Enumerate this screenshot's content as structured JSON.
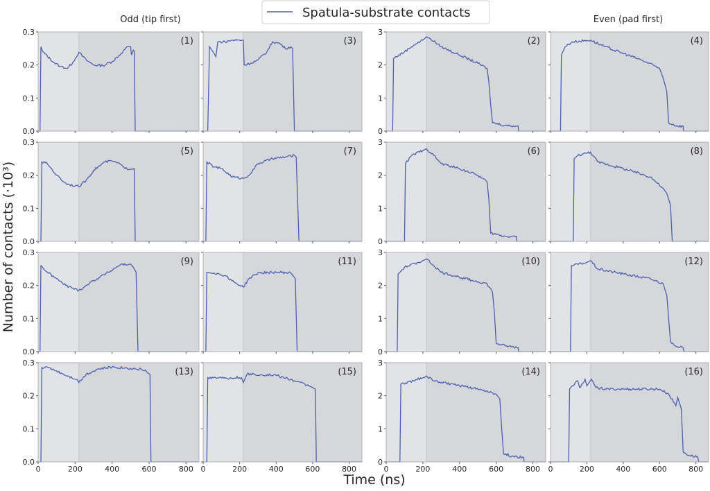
{
  "chart_data": {
    "type": "line",
    "legend": {
      "label": "Spatula-substrate contacts",
      "placement": "top-center"
    },
    "xlabel": "Time (ns)",
    "ylabel": "Number of contacts (·10³)",
    "column_titles": [
      "Odd (tip first)",
      "Even (pad first)"
    ],
    "xlim": [
      0,
      870
    ],
    "xticks": [
      0,
      200,
      400,
      600,
      800
    ],
    "shade_boundary_ns": 220,
    "line_color": "#4a5fb0",
    "shade_light": "#e2e3e6",
    "shade_dark": "#d6d7da",
    "odd_ylim": [
      0,
      0.3
    ],
    "odd_yticks": [
      "0.0",
      "0.1",
      "0.2",
      "0.3"
    ],
    "even_ylim": [
      0,
      3
    ],
    "even_yticks": [
      "0",
      "1",
      "2",
      "3"
    ],
    "panels": [
      {
        "label": "(1)",
        "row": 0,
        "col": 0,
        "points": [
          [
            0,
            0
          ],
          [
            10,
            0
          ],
          [
            15,
            0.255
          ],
          [
            25,
            0.24
          ],
          [
            80,
            0.21
          ],
          [
            120,
            0.195
          ],
          [
            160,
            0.19
          ],
          [
            190,
            0.21
          ],
          [
            220,
            0.238
          ],
          [
            260,
            0.215
          ],
          [
            300,
            0.2
          ],
          [
            350,
            0.198
          ],
          [
            400,
            0.21
          ],
          [
            450,
            0.235
          ],
          [
            480,
            0.255
          ],
          [
            500,
            0.255
          ],
          [
            505,
            0.23
          ],
          [
            515,
            0.245
          ],
          [
            520,
            0.24
          ],
          [
            525,
            0
          ],
          [
            870,
            0
          ]
        ]
      },
      {
        "label": "(3)",
        "row": 0,
        "col": 1,
        "points": [
          [
            0,
            0
          ],
          [
            25,
            0
          ],
          [
            35,
            0.255
          ],
          [
            60,
            0.235
          ],
          [
            70,
            0.225
          ],
          [
            80,
            0.27
          ],
          [
            120,
            0.27
          ],
          [
            160,
            0.275
          ],
          [
            220,
            0.275
          ],
          [
            225,
            0.2
          ],
          [
            260,
            0.205
          ],
          [
            300,
            0.215
          ],
          [
            350,
            0.24
          ],
          [
            380,
            0.27
          ],
          [
            420,
            0.265
          ],
          [
            450,
            0.25
          ],
          [
            480,
            0.255
          ],
          [
            490,
            0.25
          ],
          [
            500,
            0
          ],
          [
            870,
            0
          ]
        ]
      },
      {
        "label": "(2)",
        "row": 0,
        "col": 2,
        "points": [
          [
            0,
            0
          ],
          [
            35,
            0
          ],
          [
            40,
            2.2
          ],
          [
            100,
            2.4
          ],
          [
            150,
            2.6
          ],
          [
            200,
            2.75
          ],
          [
            220,
            2.85
          ],
          [
            240,
            2.8
          ],
          [
            300,
            2.55
          ],
          [
            400,
            2.3
          ],
          [
            500,
            2.05
          ],
          [
            550,
            1.9
          ],
          [
            560,
            1.5
          ],
          [
            570,
            0.8
          ],
          [
            580,
            0.25
          ],
          [
            650,
            0.17
          ],
          [
            720,
            0.15
          ],
          [
            722,
            0
          ],
          [
            870,
            0
          ]
        ]
      },
      {
        "label": "(4)",
        "row": 0,
        "col": 3,
        "points": [
          [
            0,
            0
          ],
          [
            55,
            0
          ],
          [
            60,
            2.3
          ],
          [
            80,
            2.55
          ],
          [
            120,
            2.7
          ],
          [
            220,
            2.75
          ],
          [
            300,
            2.55
          ],
          [
            400,
            2.35
          ],
          [
            500,
            2.15
          ],
          [
            600,
            1.9
          ],
          [
            620,
            1.6
          ],
          [
            640,
            1.2
          ],
          [
            650,
            0.25
          ],
          [
            700,
            0.15
          ],
          [
            730,
            0.15
          ],
          [
            732,
            0
          ],
          [
            870,
            0
          ]
        ]
      },
      {
        "label": "(5)",
        "row": 1,
        "col": 0,
        "points": [
          [
            0,
            0
          ],
          [
            15,
            0
          ],
          [
            20,
            0.24
          ],
          [
            50,
            0.235
          ],
          [
            100,
            0.2
          ],
          [
            150,
            0.175
          ],
          [
            220,
            0.165
          ],
          [
            260,
            0.185
          ],
          [
            300,
            0.215
          ],
          [
            360,
            0.24
          ],
          [
            400,
            0.243
          ],
          [
            450,
            0.232
          ],
          [
            470,
            0.22
          ],
          [
            520,
            0.22
          ],
          [
            525,
            0
          ],
          [
            870,
            0
          ]
        ]
      },
      {
        "label": "(7)",
        "row": 1,
        "col": 1,
        "points": [
          [
            0,
            0
          ],
          [
            15,
            0
          ],
          [
            20,
            0.24
          ],
          [
            60,
            0.225
          ],
          [
            100,
            0.22
          ],
          [
            160,
            0.195
          ],
          [
            220,
            0.19
          ],
          [
            260,
            0.205
          ],
          [
            300,
            0.235
          ],
          [
            380,
            0.25
          ],
          [
            450,
            0.255
          ],
          [
            500,
            0.26
          ],
          [
            510,
            0.255
          ],
          [
            525,
            0
          ],
          [
            870,
            0
          ]
        ]
      },
      {
        "label": "(6)",
        "row": 1,
        "col": 2,
        "points": [
          [
            0,
            0
          ],
          [
            100,
            0
          ],
          [
            105,
            2.35
          ],
          [
            140,
            2.6
          ],
          [
            200,
            2.75
          ],
          [
            220,
            2.8
          ],
          [
            260,
            2.6
          ],
          [
            300,
            2.35
          ],
          [
            400,
            2.2
          ],
          [
            500,
            2.0
          ],
          [
            550,
            1.8
          ],
          [
            560,
            1.3
          ],
          [
            570,
            0.25
          ],
          [
            650,
            0.15
          ],
          [
            710,
            0.15
          ],
          [
            712,
            0
          ],
          [
            870,
            0
          ]
        ]
      },
      {
        "label": "(8)",
        "row": 1,
        "col": 3,
        "points": [
          [
            0,
            0
          ],
          [
            125,
            0
          ],
          [
            130,
            2.5
          ],
          [
            150,
            2.6
          ],
          [
            220,
            2.7
          ],
          [
            260,
            2.4
          ],
          [
            400,
            2.2
          ],
          [
            550,
            1.95
          ],
          [
            620,
            1.6
          ],
          [
            640,
            1.45
          ],
          [
            660,
            1.1
          ],
          [
            670,
            0
          ],
          [
            870,
            0
          ]
        ]
      },
      {
        "label": "(9)",
        "row": 2,
        "col": 0,
        "points": [
          [
            0,
            0
          ],
          [
            10,
            0
          ],
          [
            15,
            0.26
          ],
          [
            50,
            0.24
          ],
          [
            100,
            0.22
          ],
          [
            150,
            0.2
          ],
          [
            220,
            0.185
          ],
          [
            260,
            0.2
          ],
          [
            300,
            0.215
          ],
          [
            380,
            0.24
          ],
          [
            450,
            0.265
          ],
          [
            480,
            0.262
          ],
          [
            500,
            0.265
          ],
          [
            515,
            0.255
          ],
          [
            530,
            0.24
          ],
          [
            540,
            0
          ],
          [
            870,
            0
          ]
        ]
      },
      {
        "label": "(11)",
        "row": 2,
        "col": 1,
        "points": [
          [
            0,
            0
          ],
          [
            15,
            0
          ],
          [
            20,
            0.24
          ],
          [
            60,
            0.238
          ],
          [
            120,
            0.23
          ],
          [
            170,
            0.21
          ],
          [
            220,
            0.195
          ],
          [
            250,
            0.22
          ],
          [
            300,
            0.238
          ],
          [
            400,
            0.24
          ],
          [
            480,
            0.238
          ],
          [
            500,
            0.225
          ],
          [
            505,
            0.22
          ],
          [
            515,
            0
          ],
          [
            870,
            0
          ]
        ]
      },
      {
        "label": "(10)",
        "row": 2,
        "col": 2,
        "points": [
          [
            0,
            0
          ],
          [
            60,
            0
          ],
          [
            65,
            2.35
          ],
          [
            100,
            2.55
          ],
          [
            200,
            2.75
          ],
          [
            220,
            2.8
          ],
          [
            260,
            2.6
          ],
          [
            300,
            2.4
          ],
          [
            400,
            2.25
          ],
          [
            550,
            2.05
          ],
          [
            580,
            1.8
          ],
          [
            590,
            1.2
          ],
          [
            600,
            0.25
          ],
          [
            650,
            0.17
          ],
          [
            720,
            0.12
          ],
          [
            722,
            0
          ],
          [
            870,
            0
          ]
        ]
      },
      {
        "label": "(12)",
        "row": 2,
        "col": 3,
        "points": [
          [
            0,
            0
          ],
          [
            110,
            0
          ],
          [
            115,
            2.6
          ],
          [
            200,
            2.7
          ],
          [
            220,
            2.75
          ],
          [
            260,
            2.5
          ],
          [
            400,
            2.35
          ],
          [
            550,
            2.2
          ],
          [
            620,
            2.05
          ],
          [
            640,
            1.7
          ],
          [
            660,
            0.3
          ],
          [
            700,
            0.15
          ],
          [
            730,
            0.12
          ],
          [
            735,
            0
          ],
          [
            870,
            0
          ]
        ]
      },
      {
        "label": "(13)",
        "row": 3,
        "col": 0,
        "points": [
          [
            0,
            0
          ],
          [
            15,
            0
          ],
          [
            20,
            0.285
          ],
          [
            60,
            0.285
          ],
          [
            100,
            0.275
          ],
          [
            160,
            0.26
          ],
          [
            210,
            0.25
          ],
          [
            220,
            0.24
          ],
          [
            260,
            0.265
          ],
          [
            320,
            0.28
          ],
          [
            400,
            0.287
          ],
          [
            500,
            0.283
          ],
          [
            580,
            0.278
          ],
          [
            590,
            0.27
          ],
          [
            605,
            0.265
          ],
          [
            610,
            0
          ],
          [
            870,
            0
          ]
        ]
      },
      {
        "label": "(15)",
        "row": 3,
        "col": 1,
        "points": [
          [
            0,
            0
          ],
          [
            20,
            0
          ],
          [
            25,
            0.255
          ],
          [
            120,
            0.255
          ],
          [
            140,
            0.25
          ],
          [
            150,
            0.255
          ],
          [
            210,
            0.255
          ],
          [
            220,
            0.24
          ],
          [
            240,
            0.265
          ],
          [
            400,
            0.262
          ],
          [
            500,
            0.245
          ],
          [
            580,
            0.23
          ],
          [
            600,
            0.225
          ],
          [
            615,
            0.22
          ],
          [
            620,
            0
          ],
          [
            870,
            0
          ]
        ]
      },
      {
        "label": "(14)",
        "row": 3,
        "col": 2,
        "points": [
          [
            0,
            0
          ],
          [
            75,
            0
          ],
          [
            80,
            2.35
          ],
          [
            150,
            2.45
          ],
          [
            220,
            2.6
          ],
          [
            260,
            2.45
          ],
          [
            400,
            2.3
          ],
          [
            550,
            2.15
          ],
          [
            600,
            2.05
          ],
          [
            620,
            1.9
          ],
          [
            630,
            1.0
          ],
          [
            640,
            0.25
          ],
          [
            700,
            0.15
          ],
          [
            750,
            0.13
          ],
          [
            752,
            0
          ],
          [
            870,
            0
          ]
        ]
      },
      {
        "label": "(16)",
        "row": 3,
        "col": 3,
        "points": [
          [
            0,
            0
          ],
          [
            100,
            0
          ],
          [
            105,
            2.2
          ],
          [
            150,
            2.45
          ],
          [
            160,
            2.25
          ],
          [
            190,
            2.5
          ],
          [
            200,
            2.3
          ],
          [
            225,
            2.5
          ],
          [
            250,
            2.25
          ],
          [
            300,
            2.2
          ],
          [
            400,
            2.2
          ],
          [
            600,
            2.2
          ],
          [
            650,
            2.05
          ],
          [
            690,
            1.7
          ],
          [
            700,
            1.95
          ],
          [
            720,
            1.6
          ],
          [
            730,
            0.3
          ],
          [
            760,
            0.2
          ],
          [
            810,
            0.15
          ],
          [
            815,
            0
          ],
          [
            870,
            0
          ]
        ]
      }
    ]
  }
}
